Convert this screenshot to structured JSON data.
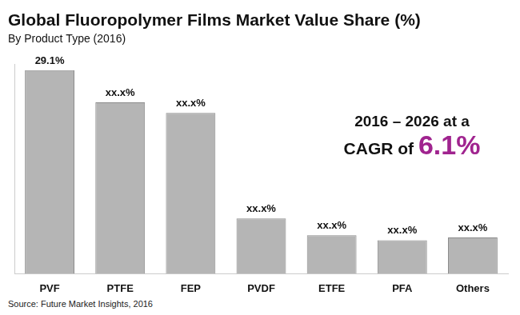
{
  "chart_data": {
    "type": "bar",
    "title": "Global Fluoropolymer Films Market Value Share (%)",
    "subtitle": "By Product Type (2016)",
    "categories": [
      "PVF",
      "PTFE",
      "FEP",
      "PVDF",
      "ETFE",
      "PFA",
      "Others"
    ],
    "values": [
      29.1,
      24.5,
      23.0,
      7.9,
      5.5,
      4.8,
      5.2
    ],
    "value_labels": [
      "29.1%",
      "xx.x%",
      "xx.x%",
      "xx.x%",
      "xx.x%",
      "xx.x%",
      "xx.x%"
    ],
    "data_labels": true,
    "color": "#b5b5b5",
    "ylim": [
      0,
      30
    ],
    "grid": false,
    "tick_labels": "x",
    "annotation": {
      "line1": "2016 – 2026 at a",
      "prefix": "CAGR of",
      "highlight": "6.1%"
    },
    "source": "Source: Future Market Insights, 2016"
  }
}
